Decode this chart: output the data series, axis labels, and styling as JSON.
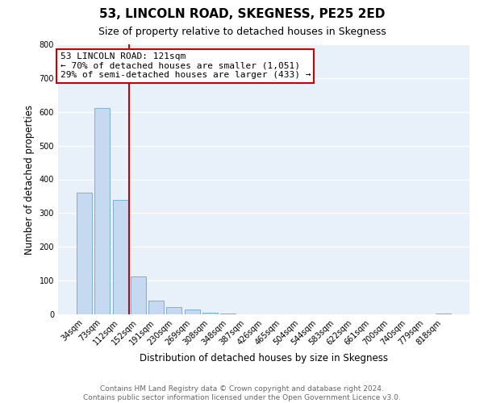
{
  "title1": "53, LINCOLN ROAD, SKEGNESS, PE25 2ED",
  "title2": "Size of property relative to detached houses in Skegness",
  "xlabel": "Distribution of detached houses by size in Skegness",
  "ylabel": "Number of detached properties",
  "bar_labels": [
    "34sqm",
    "73sqm",
    "112sqm",
    "152sqm",
    "191sqm",
    "230sqm",
    "269sqm",
    "308sqm",
    "348sqm",
    "387sqm",
    "426sqm",
    "465sqm",
    "504sqm",
    "544sqm",
    "583sqm",
    "622sqm",
    "661sqm",
    "700sqm",
    "740sqm",
    "779sqm",
    "818sqm"
  ],
  "bar_values": [
    360,
    611,
    340,
    113,
    40,
    22,
    15,
    5,
    2,
    1,
    1,
    1,
    0,
    0,
    0,
    0,
    0,
    0,
    0,
    0,
    2
  ],
  "bar_color": "#c5d9f0",
  "bar_edge_color": "#7bafd4",
  "property_label": "53 LINCOLN ROAD: 121sqm",
  "annotation_line1": "← 70% of detached houses are smaller (1,051)",
  "annotation_line2": "29% of semi-detached houses are larger (433) →",
  "red_line_x": 2.5,
  "annotation_box_color": "#ffffff",
  "annotation_box_edge": "#cc0000",
  "red_line_color": "#cc0000",
  "ylim": [
    0,
    800
  ],
  "yticks": [
    0,
    100,
    200,
    300,
    400,
    500,
    600,
    700,
    800
  ],
  "footer_line1": "Contains HM Land Registry data © Crown copyright and database right 2024.",
  "footer_line2": "Contains public sector information licensed under the Open Government Licence v3.0.",
  "bg_color": "#ffffff",
  "plot_bg_color": "#e8f0fa",
  "grid_color": "#ffffff",
  "title1_fontsize": 11,
  "title2_fontsize": 9,
  "footer_fontsize": 6.5
}
